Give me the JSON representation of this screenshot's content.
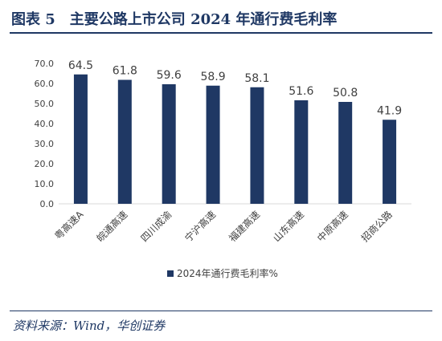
{
  "header": {
    "figure_label": "图表 5",
    "title": "主要公路上市公司 2024 年通行费毛利率"
  },
  "source": "资料来源：Wind，华创证券",
  "colors": {
    "bar": "#1f3864",
    "axis": "#d9d9d9",
    "text": "#404040"
  },
  "chart_data": {
    "type": "bar",
    "categories": [
      "粤高速A",
      "皖通高速",
      "四川成渝",
      "宁沪高速",
      "福建高速",
      "山东高速",
      "中原高速",
      "招商公路"
    ],
    "series": [
      {
        "name": "2024年通行费毛利率%",
        "values": [
          64.5,
          61.8,
          59.6,
          58.9,
          58.1,
          51.6,
          50.8,
          41.9
        ]
      }
    ],
    "yticks": [
      "0.0",
      "10.0",
      "20.0",
      "30.0",
      "40.0",
      "50.0",
      "60.0",
      "70.0"
    ],
    "ylim": [
      0,
      70
    ],
    "grid": false,
    "legend_position": "bottom",
    "title": "",
    "xlabel": "",
    "ylabel": ""
  }
}
